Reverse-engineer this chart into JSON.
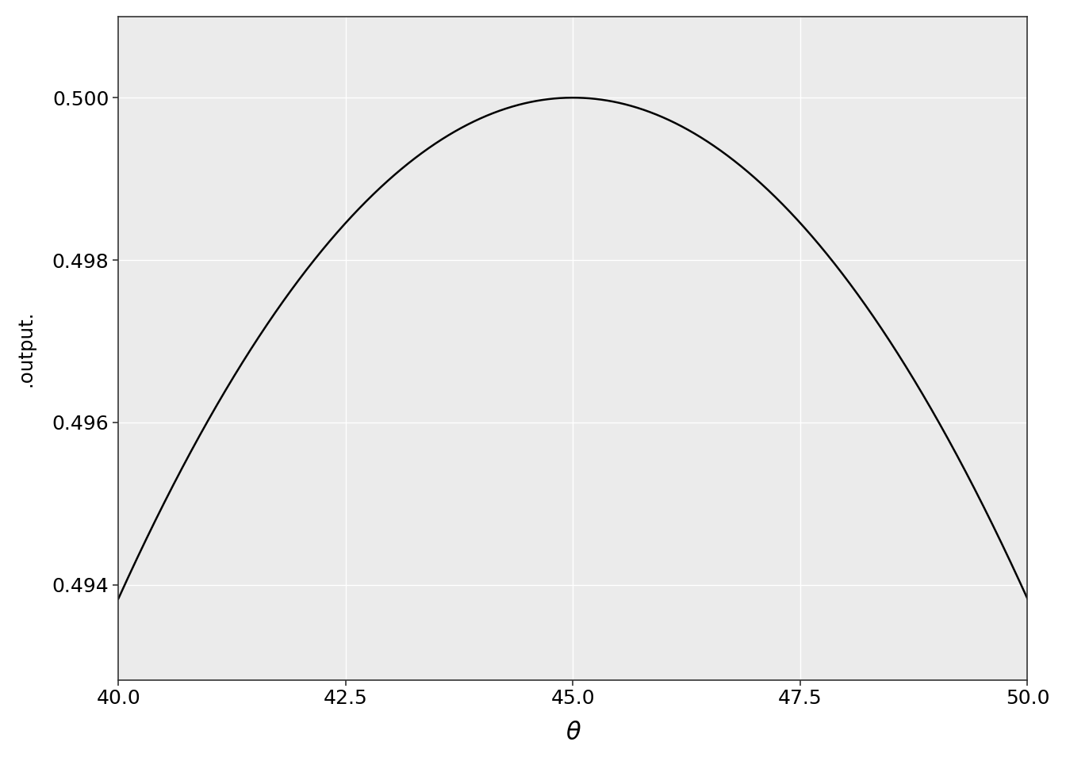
{
  "xlabel": "θ",
  "ylabel": ".output.",
  "xlim": [
    40.0,
    50.0
  ],
  "xticks": [
    40.0,
    42.5,
    45.0,
    47.5,
    50.0
  ],
  "yticks": [
    0.494,
    0.496,
    0.498,
    0.5
  ],
  "line_color": "#000000",
  "line_width": 1.8,
  "background_color": "#ffffff",
  "panel_background": "#ebebeb",
  "grid_color": "#ffffff",
  "spine_color": "#333333",
  "label_fontsize": 22,
  "tick_fontsize": 18,
  "n_points": 2000,
  "func_scale": 90.0
}
